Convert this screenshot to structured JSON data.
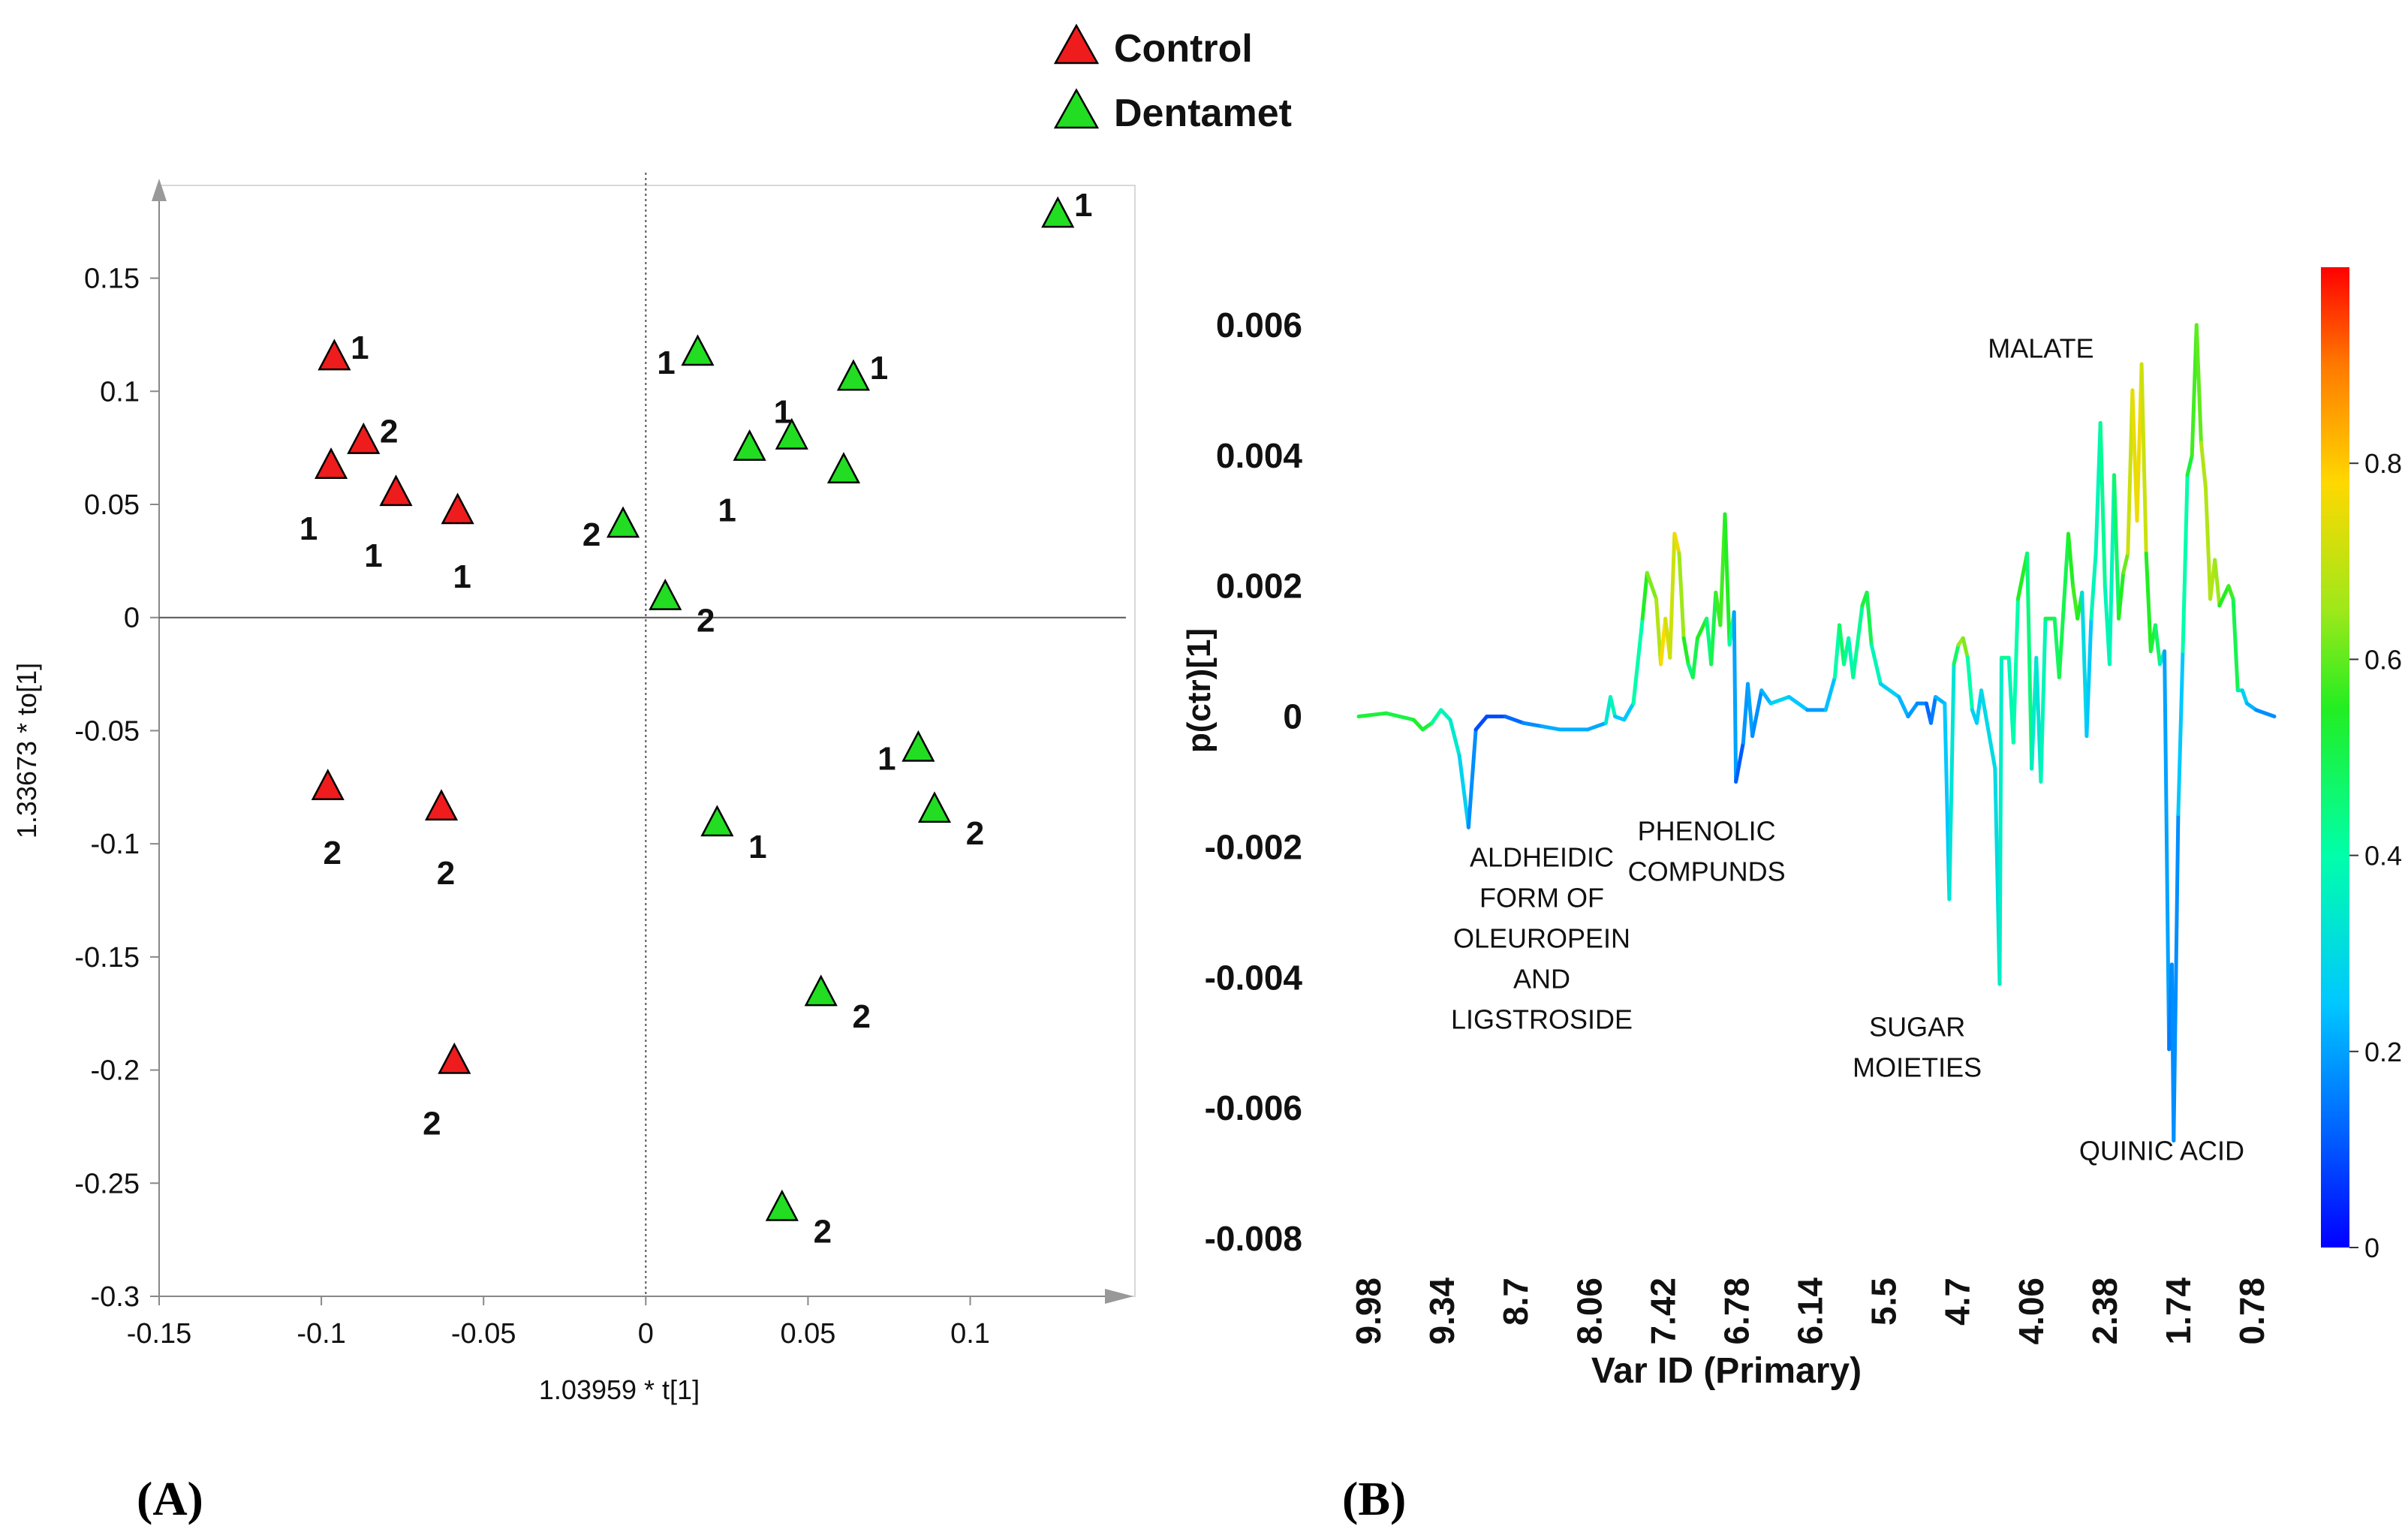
{
  "legend": [
    {
      "label": "Control",
      "color": "#ee1c1c"
    },
    {
      "label": "Dentamet",
      "color": "#22dd22"
    }
  ],
  "panel_labels": {
    "a": "(A)",
    "b": "(B)"
  },
  "chart_data": [
    {
      "type": "scatter",
      "title": "",
      "xlabel": "1.03959 * t[1]",
      "ylabel": "1.33673 * to[1]",
      "xlim": [
        -0.15,
        0.148
      ],
      "ylim": [
        -0.3,
        0.19
      ],
      "xticks": [
        "-0.15",
        "-0.1",
        "-0.05",
        "0",
        "0.05",
        "0.1"
      ],
      "xtick_values": [
        -0.15,
        -0.1,
        -0.05,
        0,
        0.05,
        0.1
      ],
      "yticks": [
        "0.15",
        "0.1",
        "0.05",
        "0",
        "-0.05",
        "-0.1",
        "-0.15",
        "-0.2",
        "-0.25",
        "-0.3"
      ],
      "ytick_values": [
        0.15,
        0.1,
        0.05,
        0,
        -0.05,
        -0.1,
        -0.15,
        -0.2,
        -0.25,
        -0.3
      ],
      "series": [
        {
          "name": "Control",
          "color": "#ee1c1c",
          "points": [
            {
              "x": -0.096,
              "y": 0.115,
              "label": "1",
              "side": "right"
            },
            {
              "x": -0.087,
              "y": 0.078,
              "label": "2",
              "side": "right"
            },
            {
              "x": -0.097,
              "y": 0.067,
              "label": "1",
              "side": "below-left"
            },
            {
              "x": -0.077,
              "y": 0.055,
              "label": "1",
              "side": "below-left"
            },
            {
              "x": -0.058,
              "y": 0.047,
              "label": "1",
              "side": "below"
            },
            {
              "x": -0.098,
              "y": -0.075,
              "label": "2",
              "side": "below"
            },
            {
              "x": -0.063,
              "y": -0.084,
              "label": "2",
              "side": "below"
            },
            {
              "x": -0.059,
              "y": -0.196,
              "label": "2",
              "side": "below-left"
            }
          ]
        },
        {
          "name": "Dentamet",
          "color": "#22dd22",
          "points": [
            {
              "x": 0.127,
              "y": 0.178,
              "label": "1",
              "side": "right"
            },
            {
              "x": 0.016,
              "y": 0.117,
              "label": "1",
              "side": "left"
            },
            {
              "x": 0.064,
              "y": 0.106,
              "label": "1",
              "side": "right"
            },
            {
              "x": 0.045,
              "y": 0.08,
              "label": "1",
              "side": "above-left"
            },
            {
              "x": 0.032,
              "y": 0.075,
              "label": "1",
              "side": "below-left"
            },
            {
              "x": 0.061,
              "y": 0.065,
              "label": "",
              "side": "none"
            },
            {
              "x": -0.007,
              "y": 0.041,
              "label": "2",
              "side": "left"
            },
            {
              "x": 0.006,
              "y": 0.009,
              "label": "2",
              "side": "right-below"
            },
            {
              "x": 0.084,
              "y": -0.058,
              "label": "1",
              "side": "left"
            },
            {
              "x": 0.089,
              "y": -0.085,
              "label": "2",
              "side": "right-below"
            },
            {
              "x": 0.022,
              "y": -0.091,
              "label": "1",
              "side": "right-below"
            },
            {
              "x": 0.054,
              "y": -0.166,
              "label": "2",
              "side": "right-below"
            },
            {
              "x": 0.042,
              "y": -0.261,
              "label": "2",
              "side": "right-below"
            }
          ]
        }
      ]
    },
    {
      "type": "line",
      "title": "",
      "xlabel": "Var ID (Primary)",
      "ylabel": "p(ctr)[1]",
      "xlim": [
        10.0,
        0.0
      ],
      "ylim": [
        -0.008,
        0.007
      ],
      "xticks": [
        "9.98",
        "9.34",
        "8.7",
        "8.06",
        "7.42",
        "6.78",
        "6.14",
        "5.5",
        "4.7",
        "4.06",
        "2.38",
        "1.74",
        "0.78"
      ],
      "yticks": [
        "0.006",
        "0.004",
        "0.002",
        "0",
        "-0.002",
        "-0.004",
        "-0.006",
        "-0.008"
      ],
      "ytick_values": [
        0.006,
        0.004,
        0.002,
        0,
        -0.002,
        -0.004,
        -0.006,
        -0.008
      ],
      "colorbar": {
        "min": 0,
        "max": 1,
        "ticks": [
          "0",
          "0.2",
          "0.4",
          "0.6",
          "0.8"
        ],
        "tick_values": [
          0,
          0.2,
          0.4,
          0.6,
          0.8
        ],
        "colormap": "jet"
      },
      "annotations": [
        {
          "lines": [
            "ALDHEIDIC",
            "FORM OF",
            "OLEUROPEIN",
            "AND",
            "LIGSTROSIDE"
          ],
          "x": 0.2,
          "y": -0.0023
        },
        {
          "lines": [
            "PHENOLIC",
            "COMPUNDS"
          ],
          "x": 0.38,
          "y": -0.0019
        },
        {
          "lines": [
            "SUGAR",
            "MOIETIES"
          ],
          "x": 0.61,
          "y": -0.0049
        },
        {
          "lines": [
            "MALATE"
          ],
          "x": 0.745,
          "y": 0.0055
        },
        {
          "lines": [
            "QUINIC ACID"
          ],
          "x": 0.877,
          "y": -0.0068
        }
      ],
      "series": [
        {
          "name": "p(ctr)[1]",
          "points": [
            [
              0.0,
              0.0,
              0.55
            ],
            [
              0.03,
              5e-05,
              0.5
            ],
            [
              0.06,
              -5e-05,
              0.52
            ],
            [
              0.07,
              -0.0002,
              0.56
            ],
            [
              0.08,
              -0.0001,
              0.48
            ],
            [
              0.09,
              0.0001,
              0.36
            ],
            [
              0.1,
              -5e-05,
              0.38
            ],
            [
              0.11,
              -0.0006,
              0.3
            ],
            [
              0.12,
              -0.0017,
              0.25
            ],
            [
              0.128,
              -0.0002,
              0.1
            ],
            [
              0.14,
              0.0,
              0.08
            ],
            [
              0.16,
              0.0,
              0.1
            ],
            [
              0.18,
              -0.0001,
              0.15
            ],
            [
              0.2,
              -0.00015,
              0.2
            ],
            [
              0.22,
              -0.0002,
              0.23
            ],
            [
              0.25,
              -0.0002,
              0.2
            ],
            [
              0.27,
              -0.0001,
              0.22
            ],
            [
              0.275,
              0.0003,
              0.45
            ],
            [
              0.28,
              0.0,
              0.3
            ],
            [
              0.29,
              -5e-05,
              0.2
            ],
            [
              0.3,
              0.0002,
              0.3
            ],
            [
              0.31,
              0.0015,
              0.5
            ],
            [
              0.315,
              0.0022,
              0.6
            ],
            [
              0.325,
              0.0018,
              0.65
            ],
            [
              0.33,
              0.0008,
              0.7
            ],
            [
              0.335,
              0.0015,
              0.85
            ],
            [
              0.34,
              0.0009,
              0.6
            ],
            [
              0.345,
              0.0028,
              0.82
            ],
            [
              0.35,
              0.0025,
              0.7
            ],
            [
              0.355,
              0.0012,
              0.6
            ],
            [
              0.36,
              0.0008,
              0.5
            ],
            [
              0.365,
              0.0006,
              0.4
            ],
            [
              0.37,
              0.0012,
              0.6
            ],
            [
              0.38,
              0.0015,
              0.5
            ],
            [
              0.385,
              0.0008,
              0.4
            ],
            [
              0.39,
              0.0019,
              0.6
            ],
            [
              0.395,
              0.0014,
              0.55
            ],
            [
              0.4,
              0.0031,
              0.6
            ],
            [
              0.405,
              0.0011,
              0.5
            ],
            [
              0.41,
              0.0016,
              0.3
            ],
            [
              0.412,
              -0.001,
              0.1
            ],
            [
              0.42,
              -0.0004,
              0.12
            ],
            [
              0.425,
              0.0005,
              0.25
            ],
            [
              0.43,
              -0.0003,
              0.15
            ],
            [
              0.44,
              0.0004,
              0.2
            ],
            [
              0.45,
              0.0002,
              0.25
            ],
            [
              0.47,
              0.0003,
              0.3
            ],
            [
              0.49,
              0.0001,
              0.2
            ],
            [
              0.51,
              0.0001,
              0.18
            ],
            [
              0.52,
              0.0006,
              0.3
            ],
            [
              0.525,
              0.0014,
              0.5
            ],
            [
              0.53,
              0.0008,
              0.45
            ],
            [
              0.535,
              0.0012,
              0.4
            ],
            [
              0.54,
              0.0006,
              0.35
            ],
            [
              0.55,
              0.0017,
              0.5
            ],
            [
              0.555,
              0.0019,
              0.55
            ],
            [
              0.56,
              0.0011,
              0.45
            ],
            [
              0.57,
              0.0005,
              0.3
            ],
            [
              0.59,
              0.0003,
              0.25
            ],
            [
              0.6,
              0.0,
              0.2
            ],
            [
              0.61,
              0.0002,
              0.18
            ],
            [
              0.62,
              0.0002,
              0.15
            ],
            [
              0.625,
              -0.0001,
              0.1
            ],
            [
              0.63,
              0.0003,
              0.2
            ],
            [
              0.64,
              0.0002,
              0.25
            ],
            [
              0.645,
              -0.0028,
              0.25
            ],
            [
              0.65,
              0.0008,
              0.4
            ],
            [
              0.655,
              0.0011,
              0.55
            ],
            [
              0.66,
              0.0012,
              0.75
            ],
            [
              0.665,
              0.0009,
              0.5
            ],
            [
              0.67,
              0.0001,
              0.3
            ],
            [
              0.675,
              -0.0001,
              0.25
            ],
            [
              0.68,
              0.0004,
              0.3
            ],
            [
              0.69,
              -0.0004,
              0.3
            ],
            [
              0.695,
              -0.0008,
              0.3
            ],
            [
              0.7,
              -0.0041,
              0.3
            ],
            [
              0.702,
              0.0009,
              0.4
            ],
            [
              0.71,
              0.0009,
              0.45
            ],
            [
              0.715,
              -0.0004,
              0.3
            ],
            [
              0.72,
              0.0018,
              0.5
            ],
            [
              0.73,
              0.0025,
              0.6
            ],
            [
              0.735,
              -0.0008,
              0.3
            ],
            [
              0.74,
              0.0009,
              0.4
            ],
            [
              0.745,
              -0.001,
              0.25
            ],
            [
              0.75,
              0.0015,
              0.5
            ],
            [
              0.76,
              0.0015,
              0.5
            ],
            [
              0.765,
              0.0006,
              0.45
            ],
            [
              0.775,
              0.0028,
              0.55
            ],
            [
              0.78,
              0.002,
              0.55
            ],
            [
              0.785,
              0.0015,
              0.6
            ],
            [
              0.79,
              0.0019,
              0.5
            ],
            [
              0.795,
              -0.0003,
              0.1
            ],
            [
              0.8,
              0.0015,
              0.4
            ],
            [
              0.805,
              0.0025,
              0.35
            ],
            [
              0.81,
              0.0045,
              0.4
            ],
            [
              0.815,
              0.002,
              0.45
            ],
            [
              0.82,
              0.0008,
              0.3
            ],
            [
              0.825,
              0.0037,
              0.45
            ],
            [
              0.83,
              0.0015,
              0.5
            ],
            [
              0.835,
              0.0022,
              0.6
            ],
            [
              0.84,
              0.0025,
              0.62
            ],
            [
              0.845,
              0.005,
              0.8
            ],
            [
              0.85,
              0.003,
              0.7
            ],
            [
              0.855,
              0.0054,
              0.82
            ],
            [
              0.86,
              0.0025,
              0.6
            ],
            [
              0.865,
              0.001,
              0.5
            ],
            [
              0.87,
              0.0014,
              0.55
            ],
            [
              0.875,
              0.0008,
              0.4
            ],
            [
              0.88,
              0.001,
              0.3
            ],
            [
              0.885,
              -0.0051,
              0.1
            ],
            [
              0.888,
              -0.0038,
              0.2
            ],
            [
              0.89,
              -0.0065,
              0.15
            ],
            [
              0.895,
              -0.0015,
              0.2
            ],
            [
              0.9,
              0.001,
              0.3
            ],
            [
              0.905,
              0.0037,
              0.5
            ],
            [
              0.91,
              0.004,
              0.55
            ],
            [
              0.915,
              0.006,
              0.6
            ],
            [
              0.92,
              0.0042,
              0.6
            ],
            [
              0.925,
              0.0035,
              0.75
            ],
            [
              0.93,
              0.0018,
              0.6
            ],
            [
              0.935,
              0.0024,
              0.75
            ],
            [
              0.94,
              0.0017,
              0.55
            ],
            [
              0.95,
              0.002,
              0.55
            ],
            [
              0.955,
              0.0018,
              0.6
            ],
            [
              0.96,
              0.0004,
              0.4
            ],
            [
              0.965,
              0.0004,
              0.3
            ],
            [
              0.97,
              0.0002,
              0.25
            ],
            [
              0.98,
              0.0001,
              0.2
            ],
            [
              1.0,
              0.0,
              0.15
            ]
          ]
        }
      ]
    }
  ]
}
